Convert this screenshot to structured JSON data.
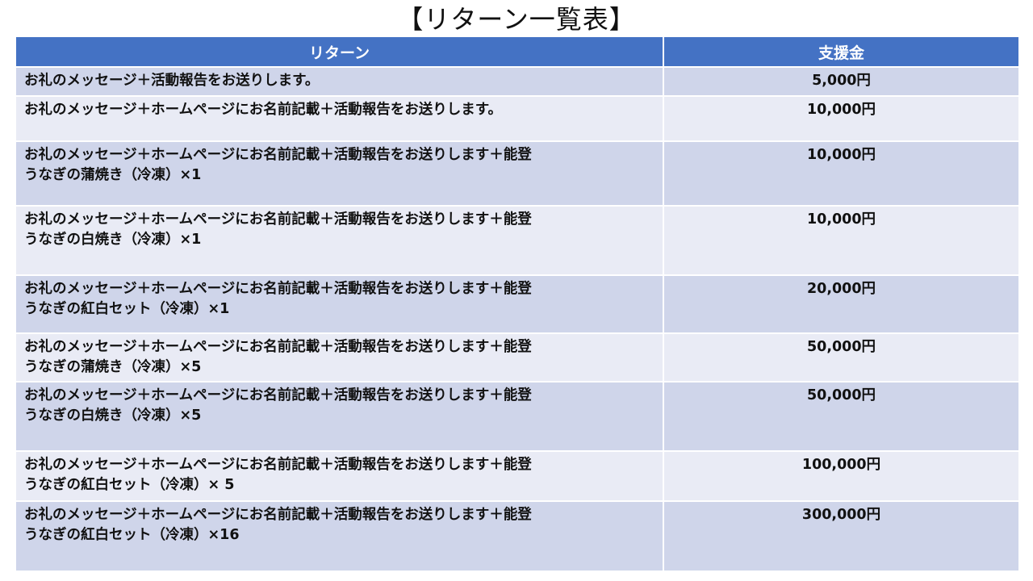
{
  "title": "【リターン一覧表】",
  "table": {
    "headers": {
      "return": "リターン",
      "amount": "支援金"
    },
    "rows": [
      {
        "line1": "お礼のメッセージ＋活動報告をお送りします。",
        "line2": "",
        "amount": "5,000円"
      },
      {
        "line1": "お礼のメッセージ＋ホームページにお名前記載＋活動報告をお送りします。",
        "line2": "",
        "amount": "10,000円"
      },
      {
        "line1": "お礼のメッセージ＋ホームページにお名前記載＋活動報告をお送りします＋能登",
        "line2": "うなぎの蒲焼き（冷凍）×1",
        "amount": "10,000円"
      },
      {
        "line1": "お礼のメッセージ＋ホームページにお名前記載＋活動報告をお送りします＋能登",
        "line2": "うなぎの白焼き（冷凍）×1",
        "amount": "10,000円"
      },
      {
        "line1": "お礼のメッセージ＋ホームページにお名前記載＋活動報告をお送りします＋能登",
        "line2": "うなぎの紅白セット（冷凍）×1",
        "amount": "20,000円"
      },
      {
        "line1": "お礼のメッセージ＋ホームページにお名前記載＋活動報告をお送りします＋能登",
        "line2": "うなぎの蒲焼き（冷凍）×5",
        "amount": "50,000円"
      },
      {
        "line1": "お礼のメッセージ＋ホームページにお名前記載＋活動報告をお送りします＋能登",
        "line2": "うなぎの白焼き（冷凍）×5",
        "amount": "50,000円"
      },
      {
        "line1": "お礼のメッセージ＋ホームページにお名前記載＋活動報告をお送りします＋能登",
        "line2": "うなぎの紅白セット（冷凍）× 5",
        "amount": "100,000円"
      },
      {
        "line1": "お礼のメッセージ＋ホームページにお名前記載＋活動報告をお送りします＋能登",
        "line2": "うなぎの紅白セット（冷凍）×16",
        "amount": "300,000円"
      }
    ]
  }
}
